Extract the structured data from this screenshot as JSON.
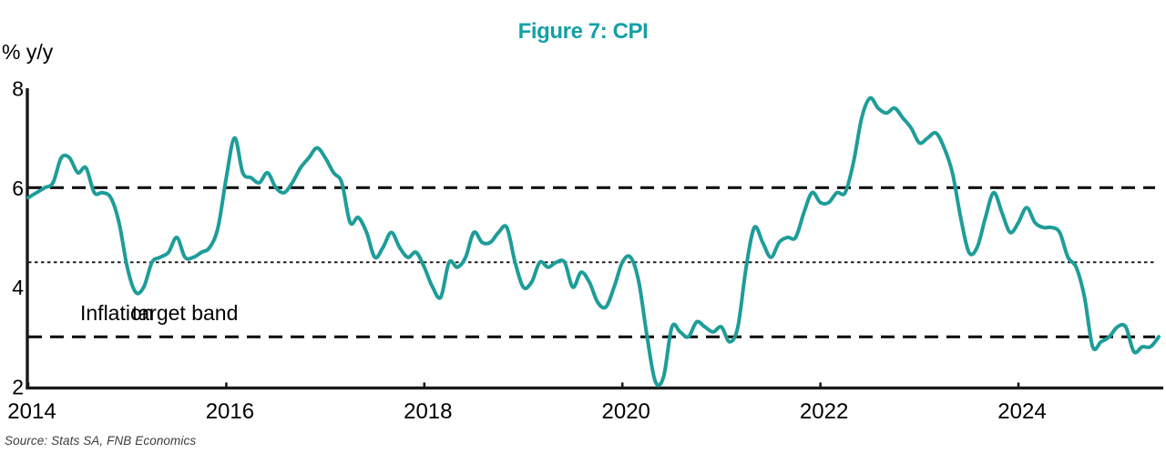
{
  "figure": {
    "title": "Figure 7: CPI",
    "source": "Source: Stats SA, FNB Economics",
    "colors": {
      "accent_teal": "#14A0A6",
      "line_teal": "#1E9D99",
      "axis_black": "#1a1a1a",
      "band_line_black": "#111111",
      "source_gray": "#3d3d3d"
    }
  },
  "chart_data": {
    "type": "line",
    "title": "Figure 7: CPI",
    "ylabel": "% y/y",
    "xlabel": "",
    "ylim": [
      2,
      8
    ],
    "yticks": [
      8,
      6,
      4,
      2
    ],
    "xticks": [
      2014,
      2016,
      2018,
      2020,
      2022,
      2024
    ],
    "x_start": "2014-01",
    "x_end": "2025-06",
    "frequency": "monthly",
    "grid": false,
    "legend": "none",
    "reference_lines": {
      "target_band_upper": 6,
      "target_band_lower": 3,
      "target_midpoint": 4.5
    },
    "annotations": [
      {
        "text": "Inflation"
      },
      {
        "text": "target band"
      }
    ],
    "series": [
      {
        "name": "CPI",
        "values": [
          5.8,
          5.9,
          6.0,
          6.1,
          6.6,
          6.6,
          6.3,
          6.4,
          5.9,
          5.9,
          5.8,
          5.3,
          4.4,
          3.9,
          4.0,
          4.5,
          4.6,
          4.7,
          5.0,
          4.6,
          4.6,
          4.7,
          4.8,
          5.2,
          6.2,
          7.0,
          6.3,
          6.2,
          6.1,
          6.3,
          6.0,
          5.9,
          6.1,
          6.4,
          6.6,
          6.8,
          6.6,
          6.3,
          6.1,
          5.3,
          5.4,
          5.1,
          4.6,
          4.8,
          5.1,
          4.8,
          4.6,
          4.7,
          4.4,
          4.0,
          3.8,
          4.5,
          4.4,
          4.6,
          5.1,
          4.9,
          4.9,
          5.1,
          5.2,
          4.5,
          4.0,
          4.1,
          4.5,
          4.4,
          4.5,
          4.5,
          4.0,
          4.3,
          4.1,
          3.7,
          3.6,
          4.0,
          4.5,
          4.6,
          4.1,
          3.0,
          2.1,
          2.2,
          3.2,
          3.1,
          3.0,
          3.3,
          3.2,
          3.1,
          3.2,
          2.9,
          3.2,
          4.4,
          5.2,
          4.9,
          4.6,
          4.9,
          5.0,
          5.0,
          5.5,
          5.9,
          5.7,
          5.7,
          5.9,
          5.9,
          6.5,
          7.4,
          7.8,
          7.6,
          7.5,
          7.6,
          7.4,
          7.2,
          6.9,
          7.0,
          7.1,
          6.8,
          6.3,
          5.4,
          4.7,
          4.8,
          5.4,
          5.9,
          5.5,
          5.1,
          5.3,
          5.6,
          5.3,
          5.2,
          5.2,
          5.1,
          4.6,
          4.4,
          3.8,
          2.8,
          2.9,
          3.0,
          3.2,
          3.2,
          2.7,
          2.8,
          2.8,
          3.0
        ]
      }
    ]
  }
}
